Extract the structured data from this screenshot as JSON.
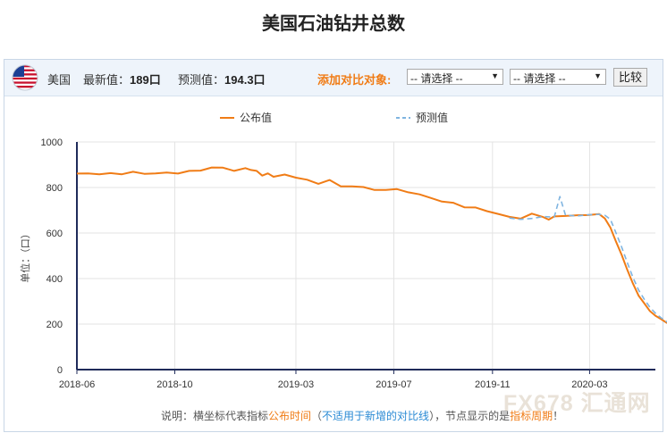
{
  "page": {
    "title": "美国石油钻井总数"
  },
  "infobar": {
    "country": "美国",
    "latest_label": "最新值：",
    "latest_value": "189口",
    "forecast_label": "预测值：",
    "forecast_value": "194.3口",
    "compare_label": "添加对比对象:",
    "select1_value": "-- 请选择 --",
    "select2_value": "-- 请选择 --",
    "compare_button": "比较",
    "flag_icon": "us-flag-icon"
  },
  "footnote": {
    "prefix": "说明：横坐标代表指标",
    "highlight1": "公布时间",
    "paren_open": "（",
    "note": "不适用于新增的对比线",
    "paren_close": "），节点显示的是",
    "highlight2": "指标周期",
    "suffix": "！"
  },
  "watermark": {
    "text": "FX678 汇通网"
  },
  "colors": {
    "actual": "#f07c16",
    "forecast": "#7fb4e0",
    "axis": "#1f2b5a",
    "grid": "#e3e3e3",
    "accent": "#f07c16"
  },
  "chart_data": {
    "type": "line",
    "title": "",
    "xlabel": "",
    "ylabel": "单位：（口）",
    "ylim": [
      0,
      1000
    ],
    "yticks": [
      0,
      200,
      400,
      600,
      800,
      1000
    ],
    "xlim": [
      "2018-06-01",
      "2020-05-22"
    ],
    "xticks": [
      "2018-06",
      "2018-10",
      "2019-03",
      "2019-07",
      "2019-11",
      "2020-03"
    ],
    "xtick_dates": [
      "2018-06-01",
      "2018-10-01",
      "2019-03-01",
      "2019-07-01",
      "2019-11-01",
      "2020-03-01"
    ],
    "grid": true,
    "legend": "top-center",
    "series": [
      {
        "name": "公布值",
        "style": "solid",
        "points": [
          [
            "2018-06-01",
            861
          ],
          [
            "2018-06-15",
            862
          ],
          [
            "2018-06-29",
            858
          ],
          [
            "2018-07-13",
            863
          ],
          [
            "2018-07-27",
            858
          ],
          [
            "2018-08-10",
            869
          ],
          [
            "2018-08-24",
            860
          ],
          [
            "2018-09-07",
            862
          ],
          [
            "2018-09-21",
            866
          ],
          [
            "2018-10-05",
            861
          ],
          [
            "2018-10-19",
            873
          ],
          [
            "2018-11-02",
            874
          ],
          [
            "2018-11-16",
            888
          ],
          [
            "2018-11-30",
            887
          ],
          [
            "2018-12-14",
            873
          ],
          [
            "2018-12-28",
            885
          ],
          [
            "2019-01-04",
            877
          ],
          [
            "2019-01-11",
            873
          ],
          [
            "2019-01-18",
            852
          ],
          [
            "2019-01-25",
            862
          ],
          [
            "2019-02-01",
            847
          ],
          [
            "2019-02-15",
            857
          ],
          [
            "2019-03-01",
            843
          ],
          [
            "2019-03-15",
            834
          ],
          [
            "2019-03-29",
            816
          ],
          [
            "2019-04-12",
            833
          ],
          [
            "2019-04-26",
            805
          ],
          [
            "2019-05-10",
            805
          ],
          [
            "2019-05-24",
            802
          ],
          [
            "2019-06-07",
            789
          ],
          [
            "2019-06-21",
            789
          ],
          [
            "2019-07-05",
            793
          ],
          [
            "2019-07-19",
            779
          ],
          [
            "2019-08-02",
            770
          ],
          [
            "2019-08-16",
            754
          ],
          [
            "2019-08-30",
            738
          ],
          [
            "2019-09-13",
            733
          ],
          [
            "2019-09-27",
            713
          ],
          [
            "2019-10-11",
            712
          ],
          [
            "2019-10-25",
            696
          ],
          [
            "2019-11-08",
            684
          ],
          [
            "2019-11-22",
            671
          ],
          [
            "2019-12-06",
            663
          ],
          [
            "2019-12-20",
            685
          ],
          [
            "2020-01-03",
            670
          ],
          [
            "2020-01-10",
            659
          ],
          [
            "2020-01-17",
            673
          ],
          [
            "2020-01-31",
            675
          ],
          [
            "2020-02-14",
            678
          ],
          [
            "2020-02-28",
            679
          ],
          [
            "2020-03-13",
            683
          ],
          [
            "2020-03-20",
            664
          ],
          [
            "2020-03-27",
            624
          ],
          [
            "2020-04-03",
            562
          ],
          [
            "2020-04-10",
            504
          ],
          [
            "2020-04-17",
            438
          ],
          [
            "2020-04-24",
            378
          ],
          [
            "2020-05-01",
            325
          ],
          [
            "2020-05-08",
            292
          ],
          [
            "2020-05-15",
            258
          ],
          [
            "2020-05-22",
            237
          ],
          [
            "2020-05-29",
            222
          ],
          [
            "2020-06-05",
            206
          ],
          [
            "2020-06-12",
            199
          ],
          [
            "2020-06-19",
            189
          ]
        ]
      },
      {
        "name": "预测值",
        "style": "dashed",
        "points": [
          [
            "2019-11-22",
            666
          ],
          [
            "2019-12-06",
            660
          ],
          [
            "2019-12-20",
            664
          ],
          [
            "2020-01-03",
            672
          ],
          [
            "2020-01-17",
            670
          ],
          [
            "2020-01-24",
            760
          ],
          [
            "2020-01-31",
            678
          ],
          [
            "2020-02-14",
            675
          ],
          [
            "2020-02-28",
            680
          ],
          [
            "2020-03-13",
            682
          ],
          [
            "2020-03-20",
            678
          ],
          [
            "2020-03-27",
            660
          ],
          [
            "2020-04-03",
            600
          ],
          [
            "2020-04-10",
            538
          ],
          [
            "2020-04-17",
            470
          ],
          [
            "2020-04-24",
            405
          ],
          [
            "2020-05-01",
            350
          ],
          [
            "2020-05-08",
            310
          ],
          [
            "2020-05-15",
            275
          ],
          [
            "2020-05-22",
            248
          ],
          [
            "2020-05-29",
            228
          ],
          [
            "2020-06-05",
            210
          ],
          [
            "2020-06-12",
            201
          ],
          [
            "2020-06-19",
            194.3
          ]
        ]
      }
    ]
  }
}
